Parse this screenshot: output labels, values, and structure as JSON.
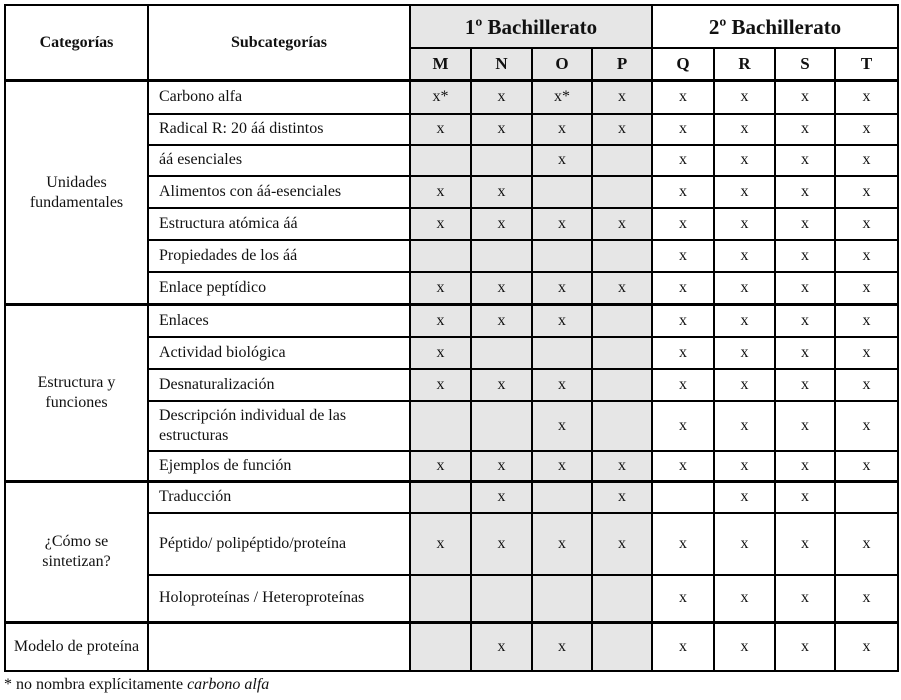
{
  "header": {
    "categories": "Categorías",
    "subcategories": "Subcategorías",
    "group1": "1º Bachillerato",
    "group2": "2º Bachillerato",
    "columns": [
      "M",
      "N",
      "O",
      "P",
      "Q",
      "R",
      "S",
      "T"
    ]
  },
  "colors": {
    "shaded": "#e6e6e6",
    "border": "#000000"
  },
  "groups": [
    {
      "category": "Unidades fundamentales",
      "rows": [
        {
          "sub": "Carbono alfa",
          "cells": [
            "x*",
            "x",
            "x*",
            "x",
            "x",
            "x",
            "x",
            "x"
          ]
        },
        {
          "sub": "Radical R: 20 áá distintos",
          "cells": [
            "x",
            "x",
            "x",
            "x",
            "x",
            "x",
            "x",
            "x"
          ]
        },
        {
          "sub": "áá esenciales",
          "cells": [
            "",
            "",
            "x",
            "",
            "x",
            "x",
            "x",
            "x"
          ]
        },
        {
          "sub": "Alimentos con áá-esenciales",
          "cells": [
            "x",
            "x",
            "",
            "",
            "x",
            "x",
            "x",
            "x"
          ]
        },
        {
          "sub": "Estructura atómica áá",
          "cells": [
            "x",
            "x",
            "x",
            "x",
            "x",
            "x",
            "x",
            "x"
          ]
        },
        {
          "sub": "Propiedades de los áá",
          "cells": [
            "",
            "",
            "",
            "",
            "x",
            "x",
            "x",
            "x"
          ]
        },
        {
          "sub": "Enlace peptídico",
          "cells": [
            "x",
            "x",
            "x",
            "x",
            "x",
            "x",
            "x",
            "x"
          ]
        }
      ]
    },
    {
      "category": "Estructura y funciones",
      "rows": [
        {
          "sub": "Enlaces",
          "cells": [
            "x",
            "x",
            "x",
            "",
            "x",
            "x",
            "x",
            "x"
          ]
        },
        {
          "sub": "Actividad biológica",
          "cells": [
            "x",
            "",
            "",
            "",
            "x",
            "x",
            "x",
            "x"
          ]
        },
        {
          "sub": "Desnaturalización",
          "cells": [
            "x",
            "x",
            "x",
            "",
            "x",
            "x",
            "x",
            "x"
          ]
        },
        {
          "sub": "Descripción individual de las estructuras",
          "cells": [
            "",
            "",
            "x",
            "",
            "x",
            "x",
            "x",
            "x"
          ]
        },
        {
          "sub": "Ejemplos de función",
          "cells": [
            "x",
            "x",
            "x",
            "x",
            "x",
            "x",
            "x",
            "x"
          ]
        }
      ]
    },
    {
      "category": "¿Cómo se sintetizan?",
      "rows": [
        {
          "sub": "Traducción",
          "cells": [
            "",
            "x",
            "",
            "x",
            "",
            "x",
            "x",
            ""
          ]
        },
        {
          "sub": "Péptido/ polipéptido/proteína",
          "cells": [
            "x",
            "x",
            "x",
            "x",
            "x",
            "x",
            "x",
            "x"
          ]
        },
        {
          "sub": "Holoproteínas / Heteroproteínas",
          "cells": [
            "",
            "",
            "",
            "",
            "x",
            "x",
            "x",
            "x"
          ]
        }
      ]
    },
    {
      "category": "Modelo de proteína",
      "rows": [
        {
          "sub": "",
          "cells": [
            "",
            "x",
            "x",
            "",
            "x",
            "x",
            "x",
            "x"
          ]
        }
      ]
    }
  ],
  "footnote": {
    "prefix": "* no nombra explícitamente ",
    "emphasis": "carbono alfa"
  }
}
